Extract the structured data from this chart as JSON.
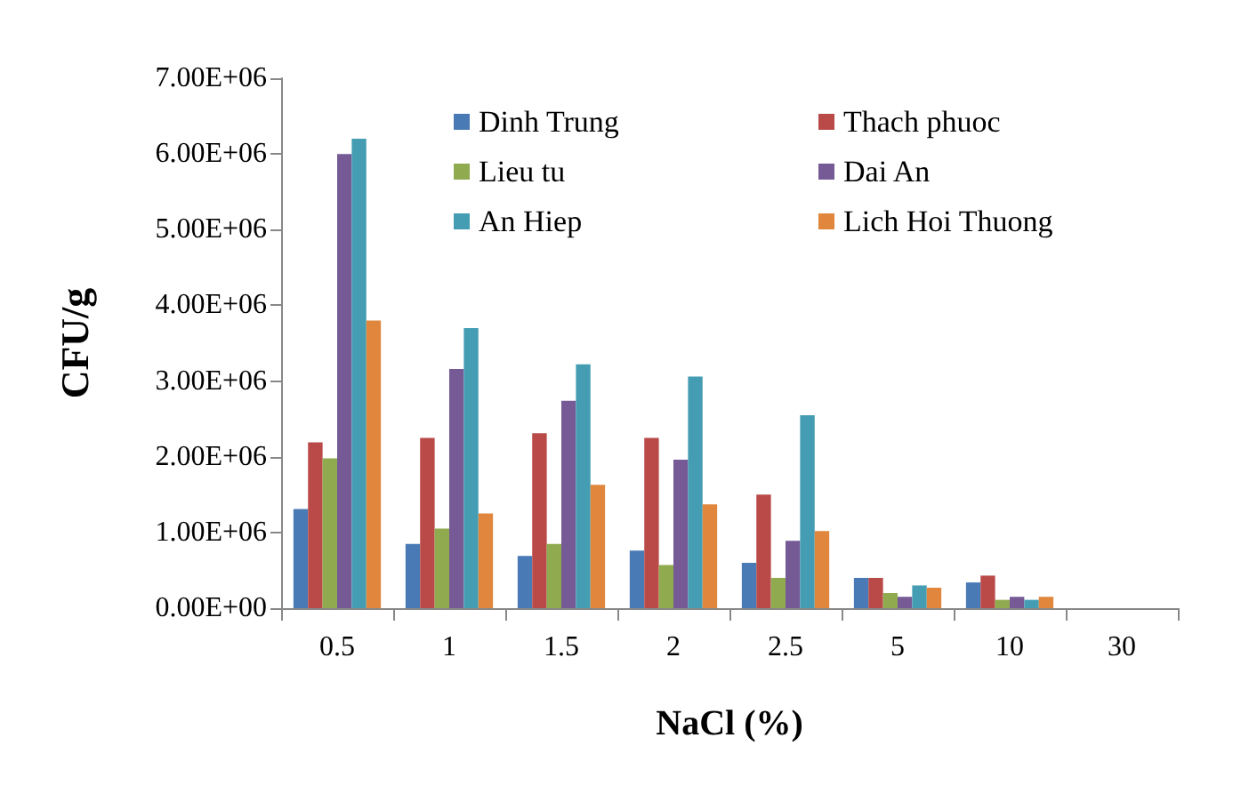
{
  "chart_data": {
    "type": "bar",
    "xlabel": "NaCl (%)",
    "ylabel": "CFU/g",
    "categories": [
      "0.5",
      "1",
      "1.5",
      "2",
      "2.5",
      "5",
      "10",
      "30"
    ],
    "series": [
      {
        "name": "Dinh Trung",
        "color": "#4a7ab5",
        "values": [
          1310000,
          850000,
          690000,
          760000,
          600000,
          400000,
          340000,
          0
        ]
      },
      {
        "name": "Thach phuoc",
        "color": "#b94a48",
        "values": [
          2190000,
          2250000,
          2310000,
          2250000,
          1500000,
          400000,
          430000,
          0
        ]
      },
      {
        "name": "Lieu tu",
        "color": "#8faa4f",
        "values": [
          1980000,
          1050000,
          850000,
          570000,
          400000,
          200000,
          110000,
          0
        ]
      },
      {
        "name": "Dai An",
        "color": "#755a96",
        "values": [
          6000000,
          3160000,
          2740000,
          1960000,
          890000,
          150000,
          150000,
          0
        ]
      },
      {
        "name": "An Hiep",
        "color": "#449db3",
        "values": [
          6200000,
          3700000,
          3220000,
          3060000,
          2550000,
          300000,
          110000,
          0
        ]
      },
      {
        "name": "Lich Hoi Thuong",
        "color": "#e0873d",
        "values": [
          3800000,
          1250000,
          1630000,
          1370000,
          1020000,
          270000,
          150000,
          0
        ]
      }
    ],
    "ylim": [
      0,
      7000000
    ],
    "yticks": [
      {
        "value": 0,
        "label": "0.00E+00"
      },
      {
        "value": 1000000,
        "label": "1.00E+06"
      },
      {
        "value": 2000000,
        "label": "2.00E+06"
      },
      {
        "value": 3000000,
        "label": "3.00E+06"
      },
      {
        "value": 4000000,
        "label": "4.00E+06"
      },
      {
        "value": 5000000,
        "label": "5.00E+06"
      },
      {
        "value": 6000000,
        "label": "6.00E+06"
      },
      {
        "value": 7000000,
        "label": "7.00E+06"
      }
    ],
    "grid": false,
    "legend": "top right"
  }
}
